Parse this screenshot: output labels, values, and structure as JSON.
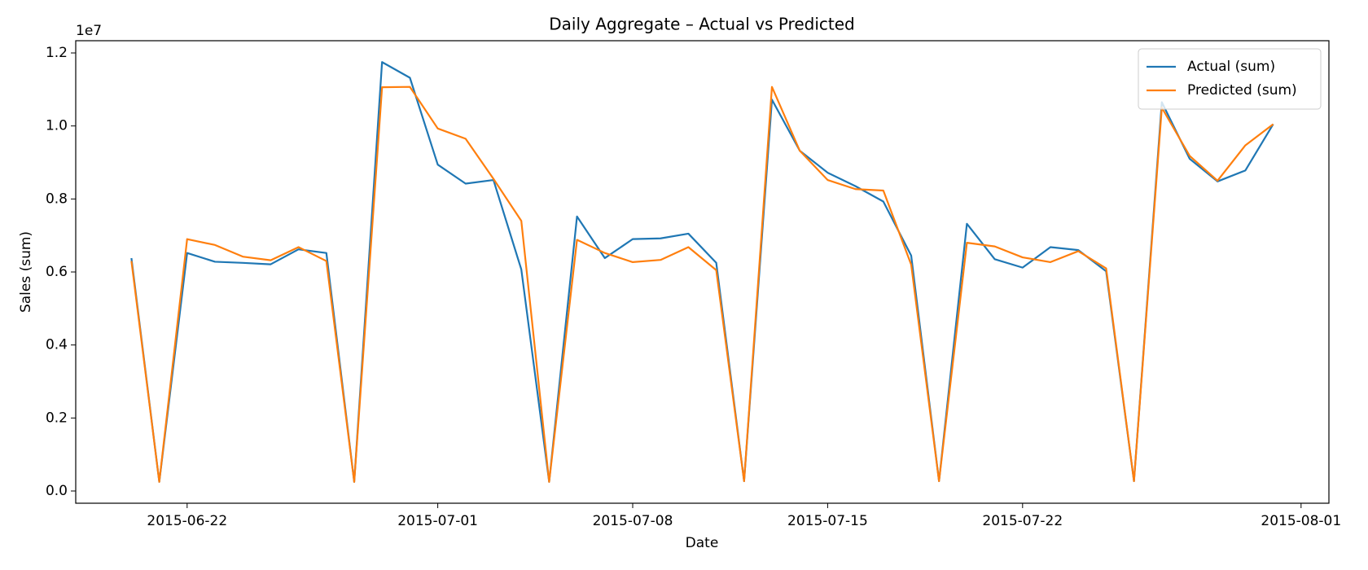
{
  "chart_data": {
    "type": "line",
    "title": "Daily Aggregate – Actual vs Predicted",
    "xlabel": "Date",
    "ylabel": "Sales (sum)",
    "y_offset_label": "1e7",
    "x": [
      "2015-06-20",
      "2015-06-21",
      "2015-06-22",
      "2015-06-23",
      "2015-06-24",
      "2015-06-25",
      "2015-06-26",
      "2015-06-27",
      "2015-06-28",
      "2015-06-29",
      "2015-06-30",
      "2015-07-01",
      "2015-07-02",
      "2015-07-03",
      "2015-07-04",
      "2015-07-05",
      "2015-07-06",
      "2015-07-07",
      "2015-07-08",
      "2015-07-09",
      "2015-07-10",
      "2015-07-11",
      "2015-07-12",
      "2015-07-13",
      "2015-07-14",
      "2015-07-15",
      "2015-07-16",
      "2015-07-17",
      "2015-07-18",
      "2015-07-19",
      "2015-07-20",
      "2015-07-21",
      "2015-07-22",
      "2015-07-23",
      "2015-07-24",
      "2015-07-25",
      "2015-07-26",
      "2015-07-27",
      "2015-07-28",
      "2015-07-29",
      "2015-07-30",
      "2015-07-31"
    ],
    "series": [
      {
        "name": "Actual (sum)",
        "color": "#1f77b4",
        "values": [
          6380000,
          250000,
          6520000,
          6280000,
          6250000,
          6210000,
          6620000,
          6520000,
          250000,
          11750000,
          11320000,
          8940000,
          8420000,
          8520000,
          6070000,
          250000,
          7520000,
          6380000,
          6900000,
          6920000,
          7050000,
          6250000,
          270000,
          10720000,
          9320000,
          8720000,
          8350000,
          7930000,
          6450000,
          270000,
          7320000,
          6350000,
          6120000,
          6680000,
          6600000,
          6020000,
          270000,
          10650000,
          9100000,
          8480000,
          8780000,
          10050000
        ]
      },
      {
        "name": "Predicted (sum)",
        "color": "#ff7f0e",
        "values": [
          6300000,
          250000,
          6900000,
          6740000,
          6420000,
          6320000,
          6680000,
          6300000,
          250000,
          11060000,
          11070000,
          9930000,
          9650000,
          8550000,
          7400000,
          250000,
          6880000,
          6520000,
          6270000,
          6330000,
          6680000,
          6050000,
          270000,
          11070000,
          9320000,
          8520000,
          8270000,
          8230000,
          6200000,
          270000,
          6800000,
          6700000,
          6400000,
          6270000,
          6570000,
          6100000,
          270000,
          10500000,
          9180000,
          8500000,
          9470000,
          10050000
        ]
      }
    ],
    "xlim": [
      "2015-06-18",
      "2015-08-02"
    ],
    "xticks": [
      "2015-06-22",
      "2015-07-01",
      "2015-07-08",
      "2015-07-15",
      "2015-07-22",
      "2015-08-01"
    ],
    "ylim": [
      -335000,
      12335000
    ],
    "yticks": [
      {
        "value": 0,
        "label": "0.0"
      },
      {
        "value": 2000000,
        "label": "0.2"
      },
      {
        "value": 4000000,
        "label": "0.4"
      },
      {
        "value": 6000000,
        "label": "0.6"
      },
      {
        "value": 8000000,
        "label": "0.8"
      },
      {
        "value": 10000000,
        "label": "1.0"
      },
      {
        "value": 12000000,
        "label": "1.2"
      }
    ],
    "grid": false,
    "legend": "upper right"
  }
}
